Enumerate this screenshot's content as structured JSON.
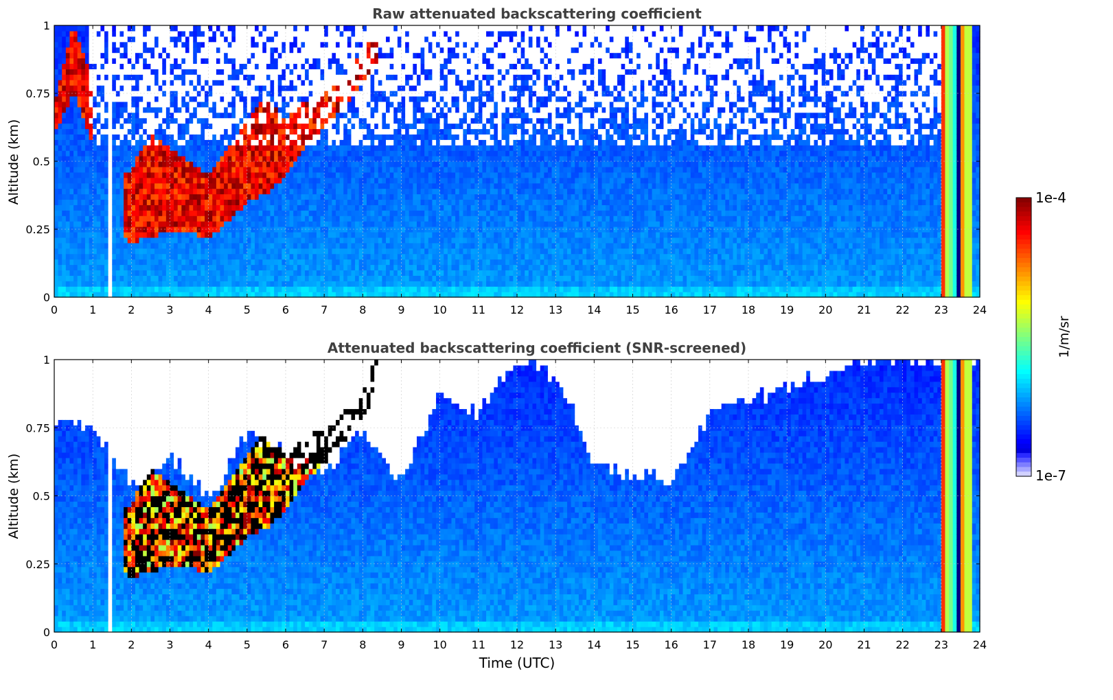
{
  "figure": {
    "xlabel": "Time (UTC)",
    "colorbar": {
      "label": "1/m/sr",
      "max_label": "1e-4",
      "min_label": "1e-7",
      "scale": "log",
      "colormap": "jet"
    }
  },
  "chart_data": [
    {
      "type": "heatmap",
      "title": "Raw attenuated backscattering coefficient",
      "xlabel": "",
      "ylabel": "Altitude (km)",
      "xlim": [
        0,
        24
      ],
      "ylim": [
        0,
        1
      ],
      "x_ticks": [
        "0",
        "1",
        "2",
        "3",
        "4",
        "5",
        "6",
        "7",
        "8",
        "9",
        "10",
        "11",
        "12",
        "13",
        "14",
        "15",
        "16",
        "17",
        "18",
        "19",
        "20",
        "21",
        "22",
        "23",
        "24"
      ],
      "y_ticks": [
        "0",
        "0.25",
        "0.5",
        "0.75",
        "1"
      ],
      "grid": true,
      "data_gap_hours": [
        1.42,
        1.52
      ],
      "value_range": [
        "1e-7",
        "1e-4"
      ],
      "cloud_layer": [
        {
          "t": 0.0,
          "base": 0.6,
          "top": 0.72
        },
        {
          "t": 0.5,
          "base": 0.75,
          "top": 1.0
        },
        {
          "t": 1.9,
          "base": 0.2,
          "top": 0.45
        },
        {
          "t": 2.5,
          "base": 0.22,
          "top": 0.6
        },
        {
          "t": 3.0,
          "base": 0.25,
          "top": 0.55
        },
        {
          "t": 3.5,
          "base": 0.24,
          "top": 0.5
        },
        {
          "t": 4.0,
          "base": 0.22,
          "top": 0.45
        },
        {
          "t": 4.5,
          "base": 0.28,
          "top": 0.55
        },
        {
          "t": 5.0,
          "base": 0.35,
          "top": 0.65
        },
        {
          "t": 5.5,
          "base": 0.38,
          "top": 0.75
        },
        {
          "t": 6.0,
          "base": 0.45,
          "top": 0.65
        },
        {
          "t": 6.5,
          "base": 0.55,
          "top": 0.72
        },
        {
          "t": 7.0,
          "base": 0.62,
          "top": 0.75
        },
        {
          "t": 7.5,
          "base": 0.7,
          "top": 0.8
        },
        {
          "t": 8.0,
          "base": 0.78,
          "top": 0.9
        },
        {
          "t": 8.3,
          "base": 0.85,
          "top": 1.0
        }
      ],
      "strong_signal_period_hours": [
        23.0,
        23.8
      ]
    },
    {
      "type": "heatmap",
      "title": "Attenuated backscattering coefficient (SNR-screened)",
      "xlabel": "Time (UTC)",
      "ylabel": "Altitude (km)",
      "xlim": [
        0,
        24
      ],
      "ylim": [
        0,
        1
      ],
      "x_ticks": [
        "0",
        "1",
        "2",
        "3",
        "4",
        "5",
        "6",
        "7",
        "8",
        "9",
        "10",
        "11",
        "12",
        "13",
        "14",
        "15",
        "16",
        "17",
        "18",
        "19",
        "20",
        "21",
        "22",
        "23",
        "24"
      ],
      "y_ticks": [
        "0",
        "0.25",
        "0.5",
        "0.75",
        "1"
      ],
      "grid": true,
      "data_gap_hours": [
        1.42,
        1.52
      ],
      "value_range": [
        "1e-7",
        "1e-4"
      ],
      "screened_top": [
        {
          "t": 0.0,
          "alt": 0.78
        },
        {
          "t": 1.0,
          "alt": 0.75
        },
        {
          "t": 2.0,
          "alt": 0.55
        },
        {
          "t": 3.0,
          "alt": 0.65
        },
        {
          "t": 4.0,
          "alt": 0.48
        },
        {
          "t": 5.0,
          "alt": 0.72
        },
        {
          "t": 6.0,
          "alt": 0.65
        },
        {
          "t": 7.0,
          "alt": 0.6
        },
        {
          "t": 8.0,
          "alt": 0.75
        },
        {
          "t": 9.0,
          "alt": 0.55
        },
        {
          "t": 10.0,
          "alt": 0.88
        },
        {
          "t": 11.0,
          "alt": 0.8
        },
        {
          "t": 12.0,
          "alt": 1.0
        },
        {
          "t": 13.0,
          "alt": 0.95
        },
        {
          "t": 14.0,
          "alt": 0.62
        },
        {
          "t": 15.0,
          "alt": 0.58
        },
        {
          "t": 16.0,
          "alt": 0.55
        },
        {
          "t": 17.0,
          "alt": 0.8
        },
        {
          "t": 18.0,
          "alt": 0.85
        },
        {
          "t": 19.0,
          "alt": 0.9
        },
        {
          "t": 20.0,
          "alt": 0.95
        },
        {
          "t": 21.0,
          "alt": 1.0
        },
        {
          "t": 22.0,
          "alt": 1.0
        },
        {
          "t": 23.0,
          "alt": 1.0
        },
        {
          "t": 24.0,
          "alt": 1.0
        }
      ],
      "strong_signal_period_hours": [
        23.0,
        23.8
      ]
    }
  ]
}
